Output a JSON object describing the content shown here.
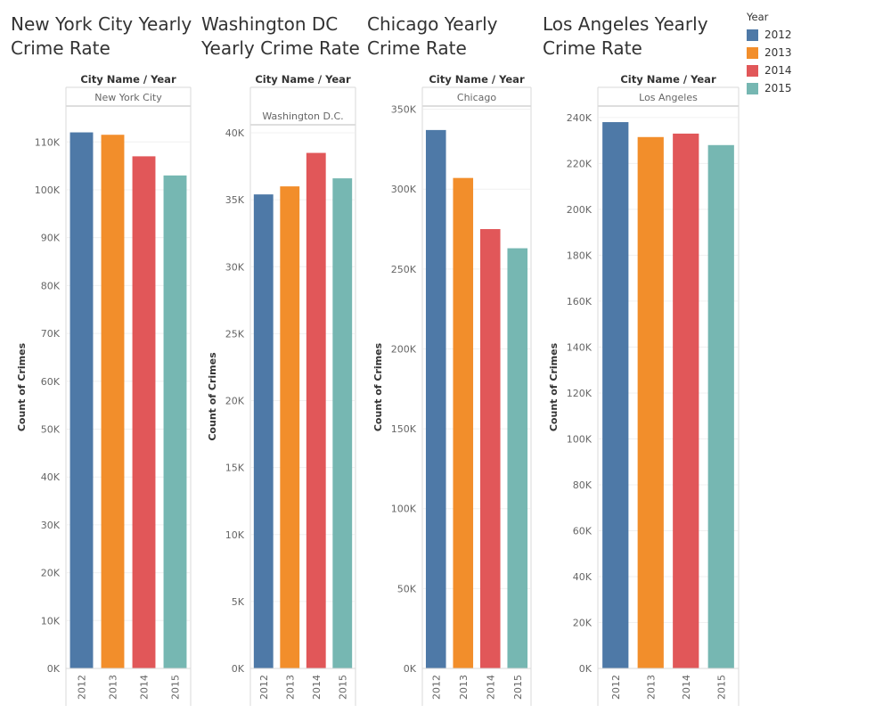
{
  "legend": {
    "title": "Year",
    "items": [
      {
        "label": "2012",
        "color": "#4e79a7"
      },
      {
        "label": "2013",
        "color": "#f28e2b"
      },
      {
        "label": "2014",
        "color": "#e15759"
      },
      {
        "label": "2015",
        "color": "#76b7b2"
      }
    ]
  },
  "header_label": "City Name  /  Year",
  "chart_data": [
    {
      "type": "bar",
      "title_line1": "New York City Yearly",
      "title_line2": "Crime Rate",
      "facet": "New York City",
      "ylabel": "Count of Crimes",
      "categories": [
        "2012",
        "2013",
        "2014",
        "2015"
      ],
      "values": [
        112000,
        111500,
        107000,
        103000
      ],
      "ylim": [
        0,
        117500
      ],
      "yticks": [
        0,
        10000,
        20000,
        30000,
        40000,
        50000,
        60000,
        70000,
        80000,
        90000,
        100000,
        110000
      ],
      "ytick_labels": [
        "0K",
        "10K",
        "20K",
        "30K",
        "40K",
        "50K",
        "60K",
        "70K",
        "80K",
        "90K",
        "100K",
        "110K"
      ]
    },
    {
      "type": "bar",
      "title_line1": "Washington DC",
      "title_line2": "Yearly Crime Rate",
      "facet": "Washington D.C.",
      "ylabel": "Count of Crimes",
      "categories": [
        "2012",
        "2013",
        "2014",
        "2015"
      ],
      "values": [
        35400,
        36000,
        38500,
        36600
      ],
      "ylim": [
        0,
        40600
      ],
      "yticks": [
        0,
        5000,
        10000,
        15000,
        20000,
        25000,
        30000,
        35000,
        40000
      ],
      "ytick_labels": [
        "0K",
        "5K",
        "10K",
        "15K",
        "20K",
        "25K",
        "30K",
        "35K",
        "40K"
      ]
    },
    {
      "type": "bar",
      "title_line1": "Chicago Yearly",
      "title_line2": "Crime Rate",
      "facet": "Chicago",
      "ylabel": "Count of Crimes",
      "categories": [
        "2012",
        "2013",
        "2014",
        "2015"
      ],
      "values": [
        337000,
        307000,
        275000,
        263000
      ],
      "ylim": [
        0,
        352000
      ],
      "yticks": [
        0,
        50000,
        100000,
        150000,
        200000,
        250000,
        300000,
        350000
      ],
      "ytick_labels": [
        "0K",
        "50K",
        "100K",
        "150K",
        "200K",
        "250K",
        "300K",
        "350K"
      ]
    },
    {
      "type": "bar",
      "title_line1": "Los Angeles Yearly",
      "title_line2": "Crime Rate",
      "facet": "Los Angeles",
      "ylabel": "Count of Crimes",
      "categories": [
        "2012",
        "2013",
        "2014",
        "2015"
      ],
      "values": [
        238000,
        231500,
        233000,
        228000
      ],
      "ylim": [
        0,
        245000
      ],
      "yticks": [
        0,
        20000,
        40000,
        60000,
        80000,
        100000,
        120000,
        140000,
        160000,
        180000,
        200000,
        220000,
        240000
      ],
      "ytick_labels": [
        "0K",
        "20K",
        "40K",
        "60K",
        "80K",
        "100K",
        "120K",
        "140K",
        "160K",
        "180K",
        "200K",
        "220K",
        "240K"
      ]
    }
  ]
}
